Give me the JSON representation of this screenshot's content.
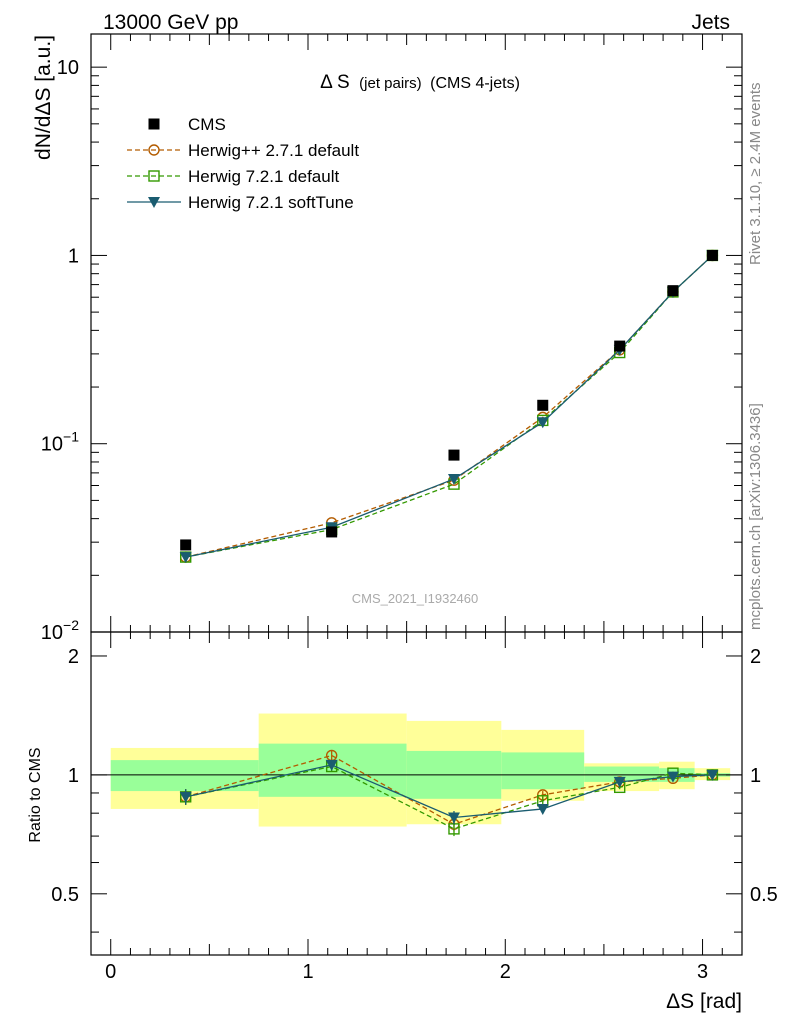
{
  "header": {
    "left_label": "13000 GeV pp",
    "right_label": "Jets"
  },
  "side_text": {
    "rivet": "Rivet 3.1.10, ≥ 2.4M events",
    "mcplots": "mcplots.cern.ch [arXiv:1306.3436]"
  },
  "chart_data": {
    "type": "scatter",
    "title_main": "Δ S",
    "title_small": "(jet pairs)",
    "title_tail": "(CMS 4-jets)",
    "analysis_id": "CMS_2021_I1932460",
    "xlabel": "ΔS [rad]",
    "ylabel_top": "dN/dΔS [a.u.]",
    "ylabel_ratio": "Ratio to CMS",
    "xlim": [
      -0.1,
      3.2
    ],
    "ylim_top": [
      0.01,
      15
    ],
    "yscale_top": "log",
    "ylim_ratio": [
      0.35,
      2.3
    ],
    "yscale_ratio": "log",
    "x_ticks": [
      "0",
      "1",
      "2",
      "3"
    ],
    "y_ticks_top": [
      {
        "base": "10",
        "exp": "",
        "value": 10
      },
      {
        "base": "1",
        "exp": "",
        "value": 1
      },
      {
        "base": "10",
        "exp": "−1",
        "value": 0.1
      },
      {
        "base": "10",
        "exp": "−2",
        "value": 0.01
      }
    ],
    "y_ticks_ratio": [
      "0.5",
      "1",
      "2"
    ],
    "legend_position": "top-left",
    "bins": [
      {
        "lo": 0.0,
        "hi": 0.75,
        "x": 0.38
      },
      {
        "lo": 0.75,
        "hi": 1.5,
        "x": 1.12
      },
      {
        "lo": 1.5,
        "hi": 1.98,
        "x": 1.74
      },
      {
        "lo": 1.98,
        "hi": 2.4,
        "x": 2.19
      },
      {
        "lo": 2.4,
        "hi": 2.78,
        "x": 2.58
      },
      {
        "lo": 2.78,
        "hi": 2.96,
        "x": 2.85
      },
      {
        "lo": 2.96,
        "hi": 3.14,
        "x": 3.05
      }
    ],
    "data": {
      "name": "CMS",
      "values": [
        0.029,
        0.034,
        0.087,
        0.16,
        0.33,
        0.65,
        1.0
      ],
      "band_inner": [
        [
          0.91,
          1.09
        ],
        [
          0.88,
          1.2
        ],
        [
          0.87,
          1.15
        ],
        [
          0.92,
          1.14
        ],
        [
          0.96,
          1.05
        ],
        [
          0.96,
          1.04
        ],
        [
          0.99,
          1.01
        ]
      ],
      "band_outer": [
        [
          0.82,
          1.17
        ],
        [
          0.74,
          1.43
        ],
        [
          0.75,
          1.37
        ],
        [
          0.86,
          1.3
        ],
        [
          0.91,
          1.07
        ],
        [
          0.92,
          1.08
        ],
        [
          0.97,
          1.04
        ]
      ]
    },
    "series": [
      {
        "name": "Herwig++ 2.7.1 default",
        "color": "#b35c00",
        "dash": "5,3",
        "marker": "circle-open",
        "values": [
          0.025,
          0.038,
          0.064,
          0.138,
          0.315,
          0.64,
          1.0
        ],
        "ratio": [
          0.88,
          1.12,
          0.75,
          0.89,
          0.96,
          0.98,
          1.0
        ],
        "ratio_err": [
          0.04,
          0.03,
          0.03,
          0.02,
          0.01,
          0.01,
          0.0
        ]
      },
      {
        "name": "Herwig 7.2.1 default",
        "color": "#339900",
        "dash": "5,3",
        "marker": "square-open",
        "values": [
          0.025,
          0.035,
          0.061,
          0.133,
          0.305,
          0.64,
          1.0
        ],
        "ratio": [
          0.88,
          1.05,
          0.73,
          0.86,
          0.93,
          1.01,
          1.0
        ],
        "ratio_err": [
          0.04,
          0.03,
          0.03,
          0.02,
          0.01,
          0.01,
          0.0
        ]
      },
      {
        "name": "Herwig 7.2.1 softTune",
        "color": "#1a5c70",
        "dash": "",
        "marker": "triangle-down",
        "values": [
          0.025,
          0.036,
          0.065,
          0.13,
          0.315,
          0.64,
          1.0
        ],
        "ratio": [
          0.88,
          1.06,
          0.78,
          0.82,
          0.96,
          0.99,
          1.0
        ],
        "ratio_err": [
          0.04,
          0.03,
          0.03,
          0.02,
          0.01,
          0.01,
          0.0
        ]
      }
    ]
  }
}
